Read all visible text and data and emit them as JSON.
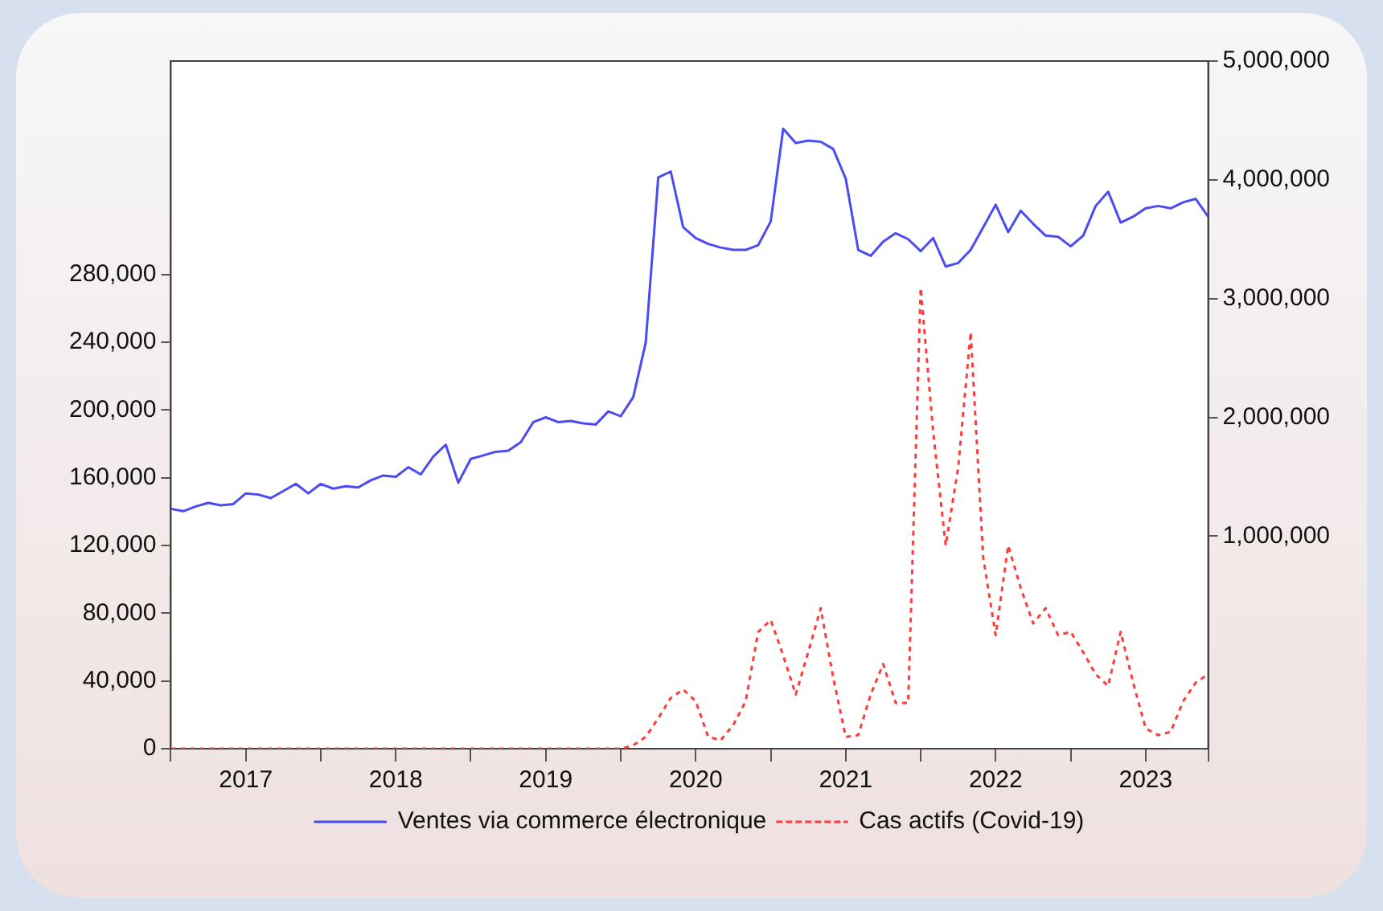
{
  "chart_data": {
    "type": "line",
    "x": [
      "2017-01",
      "2017-02",
      "2017-03",
      "2017-04",
      "2017-05",
      "2017-06",
      "2017-07",
      "2017-08",
      "2017-09",
      "2017-10",
      "2017-11",
      "2017-12",
      "2018-01",
      "2018-02",
      "2018-03",
      "2018-04",
      "2018-05",
      "2018-06",
      "2018-07",
      "2018-08",
      "2018-09",
      "2018-10",
      "2018-11",
      "2018-12",
      "2019-01",
      "2019-02",
      "2019-03",
      "2019-04",
      "2019-05",
      "2019-06",
      "2019-07",
      "2019-08",
      "2019-09",
      "2019-10",
      "2019-11",
      "2019-12",
      "2020-01",
      "2020-02",
      "2020-03",
      "2020-04",
      "2020-05",
      "2020-06",
      "2020-07",
      "2020-08",
      "2020-09",
      "2020-10",
      "2020-11",
      "2020-12",
      "2021-01",
      "2021-02",
      "2021-03",
      "2021-04",
      "2021-05",
      "2021-06",
      "2021-07",
      "2021-08",
      "2021-09",
      "2021-10",
      "2021-11",
      "2021-12",
      "2022-01",
      "2022-02",
      "2022-03",
      "2022-04",
      "2022-05",
      "2022-06",
      "2022-07",
      "2022-08",
      "2022-09",
      "2022-10",
      "2022-11",
      "2022-12",
      "2023-01",
      "2023-02",
      "2023-03",
      "2023-04",
      "2023-05",
      "2023-06",
      "2023-07",
      "2023-08",
      "2023-09",
      "2023-10",
      "2023-11",
      "2023-12"
    ],
    "series": [
      {
        "name": "Ventes via commerce électronique",
        "color": "#4b4bf5",
        "axis": "y2",
        "line_style": "solid",
        "values": [
          1230000,
          1210000,
          1250000,
          1280000,
          1260000,
          1270000,
          1360000,
          1350000,
          1320000,
          1380000,
          1440000,
          1360000,
          1440000,
          1400000,
          1420000,
          1410000,
          1470000,
          1510000,
          1500000,
          1580000,
          1520000,
          1670000,
          1770000,
          1450000,
          1650000,
          1680000,
          1710000,
          1720000,
          1790000,
          1960000,
          2000000,
          1960000,
          1970000,
          1950000,
          1940000,
          2050000,
          2010000,
          2170000,
          2630000,
          4020000,
          4070000,
          3600000,
          3510000,
          3460000,
          3430000,
          3410000,
          3410000,
          3450000,
          3650000,
          4430000,
          4310000,
          4330000,
          4320000,
          4260000,
          4010000,
          3410000,
          3360000,
          3480000,
          3550000,
          3500000,
          3400000,
          3510000,
          3270000,
          3300000,
          3410000,
          3600000,
          3790000,
          3560000,
          3740000,
          3630000,
          3530000,
          3520000,
          3440000,
          3530000,
          3780000,
          3900000,
          3640000,
          3690000,
          3760000,
          3780000,
          3760000,
          3810000,
          3840000,
          3690000
        ]
      },
      {
        "name": "Cas actifs (Covid-19)",
        "color": "#ff3b3b",
        "axis": "y",
        "line_style": "dashed",
        "values": [
          0,
          0,
          0,
          0,
          0,
          0,
          0,
          0,
          0,
          0,
          0,
          0,
          0,
          0,
          0,
          0,
          0,
          0,
          0,
          0,
          0,
          0,
          0,
          0,
          0,
          0,
          0,
          0,
          0,
          0,
          0,
          0,
          0,
          0,
          0,
          0,
          0,
          2000,
          7000,
          18000,
          30000,
          35000,
          28000,
          7000,
          5000,
          14000,
          28000,
          69000,
          76000,
          55000,
          32000,
          57000,
          83000,
          42000,
          7000,
          8000,
          32000,
          50000,
          27000,
          27000,
          272000,
          187000,
          120000,
          166000,
          246000,
          113000,
          67000,
          120000,
          95000,
          74000,
          83000,
          67000,
          69000,
          57000,
          44000,
          37000,
          69000,
          39000,
          12000,
          8000,
          10000,
          28000,
          39000,
          44000
        ]
      }
    ],
    "xlim": [
      "2017-01",
      "2023-12"
    ],
    "xticks": [
      {
        "value": "2017-01",
        "label": null
      },
      {
        "value": "2017-07",
        "label": "2017"
      },
      {
        "value": "2018-01",
        "label": null
      },
      {
        "value": "2018-07",
        "label": "2018"
      },
      {
        "value": "2019-01",
        "label": null
      },
      {
        "value": "2019-07",
        "label": "2019"
      },
      {
        "value": "2020-01",
        "label": null
      },
      {
        "value": "2020-07",
        "label": "2020"
      },
      {
        "value": "2021-01",
        "label": null
      },
      {
        "value": "2021-07",
        "label": "2021"
      },
      {
        "value": "2022-01",
        "label": null
      },
      {
        "value": "2022-07",
        "label": "2022"
      },
      {
        "value": "2023-01",
        "label": null
      },
      {
        "value": "2023-07",
        "label": "2023"
      },
      {
        "value": "2023-12",
        "label": null
      }
    ],
    "ylim": [
      0,
      406000
    ],
    "yticks": [
      0,
      {
        "value": 40000,
        "label": "40,000"
      },
      {
        "value": 80000,
        "label": "80,000"
      },
      {
        "value": 120000,
        "label": "120,000"
      },
      {
        "value": 160000,
        "label": "160,000"
      },
      {
        "value": 200000,
        "label": "200,000"
      },
      {
        "value": 240000,
        "label": "240,000"
      },
      {
        "value": 280000,
        "label": "280,000"
      }
    ],
    "y2lim": [
      -790000,
      5000000
    ],
    "y2ticks": [
      {
        "value": 1000000,
        "label": "1,000,000"
      },
      {
        "value": 2000000,
        "label": "2,000,000"
      },
      {
        "value": 3000000,
        "label": "3,000,000"
      },
      {
        "value": 4000000,
        "label": "4,000,000"
      },
      {
        "value": 5000000,
        "label": "5,000,000"
      }
    ],
    "marker": "none",
    "grid": false,
    "legend": "bottom"
  }
}
